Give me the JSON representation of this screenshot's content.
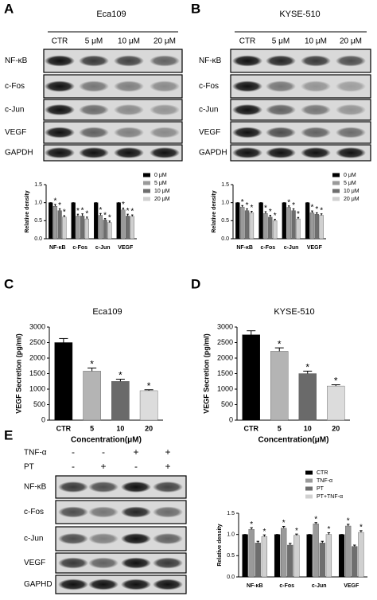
{
  "panel_labels": [
    "A",
    "B",
    "C",
    "D",
    "E"
  ],
  "blots": [
    {
      "title": "Eca109",
      "lanes": [
        "CTR",
        "5 μM",
        "10 μM",
        "20 μM"
      ],
      "rows": [
        "NF-κB",
        "c-Fos",
        "c-Jun",
        "VEGF",
        "GAPDH"
      ]
    },
    {
      "title": "KYSE-510",
      "lanes": [
        "CTR",
        "5 μM",
        "10 μM",
        "20 μM"
      ],
      "rows": [
        "NF-κB",
        "c-Fos",
        "c-Jun",
        "VEGF",
        "GAPDH"
      ]
    },
    {
      "conditions": [
        {
          "name": "TNF-α",
          "signs": [
            "-",
            "-",
            "+",
            "+"
          ]
        },
        {
          "name": "PT",
          "signs": [
            "-",
            "+",
            "-",
            "+"
          ]
        }
      ],
      "rows": [
        "NF-κB",
        "c-Fos",
        "c-Jun",
        "VEGF",
        "GAPHD"
      ]
    }
  ],
  "chart_data": [
    {
      "type": "bar",
      "y_label": "Relative density",
      "categories": [
        "NF-κB",
        "c-Fos",
        "c-Jun",
        "VEGF"
      ],
      "legend": "right",
      "significance_label": "*",
      "ylim": [
        0,
        1.5
      ],
      "yticks": [
        {
          "value": 0,
          "label": "0.0"
        },
        0.5,
        {
          "value": 1,
          "label": "1.0"
        },
        1.5
      ],
      "series": [
        {
          "name": "0 μM",
          "color": "#000000",
          "values": [
            1.0,
            1.0,
            1.0,
            1.0
          ],
          "errors": [
            0,
            0,
            0,
            0
          ],
          "significant": [
            false,
            false,
            false,
            false
          ]
        },
        {
          "name": "5 μM",
          "color": "#9a9a9a",
          "values": [
            0.9,
            0.63,
            0.65,
            0.8
          ],
          "errors": [
            0.05,
            0.05,
            0.05,
            0.05
          ],
          "significant": [
            true,
            true,
            true,
            true
          ]
        },
        {
          "name": "10 μM",
          "color": "#6e6e6e",
          "values": [
            0.78,
            0.63,
            0.52,
            0.63
          ],
          "errors": [
            0.05,
            0.06,
            0.04,
            0.05
          ],
          "significant": [
            true,
            true,
            true,
            true
          ]
        },
        {
          "name": "20 μM",
          "color": "#d0d0d0",
          "values": [
            0.6,
            0.55,
            0.45,
            0.62
          ],
          "errors": [
            0.04,
            0.05,
            0.04,
            0.04
          ],
          "significant": [
            true,
            true,
            true,
            true
          ]
        }
      ]
    },
    {
      "type": "bar",
      "y_label": "Relative density",
      "categories": [
        "NF-κB",
        "c-Fos",
        "c-Jun",
        "VEGF"
      ],
      "legend": "right",
      "significance_label": "*",
      "ylim": [
        0,
        1.5
      ],
      "yticks": [
        {
          "value": 0,
          "label": "0.0"
        },
        0.5,
        {
          "value": 1,
          "label": "1.0"
        },
        1.5
      ],
      "series": [
        {
          "name": "0 μM",
          "color": "#000000",
          "values": [
            1.0,
            1.0,
            1.0,
            1.0
          ],
          "errors": [
            0,
            0,
            0,
            0
          ],
          "significant": [
            false,
            false,
            false,
            false
          ]
        },
        {
          "name": "5 μM",
          "color": "#9a9a9a",
          "values": [
            0.88,
            0.7,
            0.87,
            0.72
          ],
          "errors": [
            0.04,
            0.05,
            0.04,
            0.05
          ],
          "significant": [
            true,
            true,
            true,
            true
          ]
        },
        {
          "name": "10 μM",
          "color": "#6e6e6e",
          "values": [
            0.78,
            0.6,
            0.78,
            0.68
          ],
          "errors": [
            0.05,
            0.05,
            0.05,
            0.04
          ],
          "significant": [
            true,
            true,
            true,
            true
          ]
        },
        {
          "name": "20 μM",
          "color": "#d0d0d0",
          "values": [
            0.72,
            0.5,
            0.55,
            0.65
          ],
          "errors": [
            0.04,
            0.04,
            0.04,
            0.04
          ],
          "significant": [
            true,
            true,
            true,
            true
          ]
        }
      ]
    },
    {
      "type": "bar",
      "title": "Eca109",
      "x_label": "Concentration(μM)",
      "y_label": "VEGF Secretion (pg/ml)",
      "significance_label": "*",
      "categories": [
        "CTR",
        "5",
        "10",
        "20"
      ],
      "values": [
        2500,
        1580,
        1250,
        950
      ],
      "errors": [
        130,
        100,
        70,
        30
      ],
      "colors": [
        "#000000",
        "#b4b4b4",
        "#6a6a6a",
        "#dcdcdc"
      ],
      "significant": [
        false,
        true,
        true,
        true
      ],
      "ylim": [
        0,
        3000
      ],
      "yticks": [
        0,
        500,
        1000,
        1500,
        2000,
        2500,
        3000
      ]
    },
    {
      "type": "bar",
      "title": "KYSE-510",
      "x_label": "Concentration(μM)",
      "y_label": "VEGF Secretion (pg/ml)",
      "significance_label": "*",
      "categories": [
        "CTR",
        "5",
        "10",
        "20"
      ],
      "values": [
        2750,
        2220,
        1500,
        1100
      ],
      "errors": [
        130,
        110,
        80,
        40
      ],
      "colors": [
        "#000000",
        "#b4b4b4",
        "#6a6a6a",
        "#dcdcdc"
      ],
      "significant": [
        false,
        true,
        true,
        true
      ],
      "ylim": [
        0,
        3000
      ],
      "yticks": [
        0,
        500,
        1000,
        1500,
        2000,
        2500,
        3000
      ]
    },
    {
      "type": "bar",
      "y_label": "Relative density",
      "categories": [
        "NF-κB",
        "c-Fos",
        "c-Jun",
        "VEGF"
      ],
      "legend": "right",
      "significance_label": "*",
      "ylim": [
        0,
        1.5
      ],
      "yticks": [
        {
          "value": 0,
          "label": "0.0"
        },
        0.5,
        {
          "value": 1,
          "label": "1.0"
        },
        1.5
      ],
      "series": [
        {
          "name": "CTR",
          "color": "#000000",
          "values": [
            1.0,
            1.0,
            1.0,
            1.0
          ],
          "errors": [
            0,
            0,
            0,
            0
          ],
          "significant": [
            false,
            false,
            false,
            false
          ]
        },
        {
          "name": "TNF-α",
          "color": "#9a9a9a",
          "values": [
            1.12,
            1.15,
            1.25,
            1.2
          ],
          "errors": [
            0.04,
            0.04,
            0.03,
            0.04
          ],
          "significant": [
            true,
            true,
            true,
            true
          ]
        },
        {
          "name": "PT",
          "color": "#6e6e6e",
          "values": [
            0.8,
            0.75,
            0.8,
            0.72
          ],
          "errors": [
            0.04,
            0.04,
            0.04,
            0.03
          ],
          "significant": [
            false,
            false,
            false,
            false
          ]
        },
        {
          "name": "PT+TNF-α",
          "color": "#d0d0d0",
          "values": [
            0.95,
            0.98,
            1.0,
            1.05
          ],
          "errors": [
            0.04,
            0.03,
            0.04,
            0.04
          ],
          "significant": [
            true,
            true,
            true,
            true
          ]
        }
      ]
    }
  ]
}
